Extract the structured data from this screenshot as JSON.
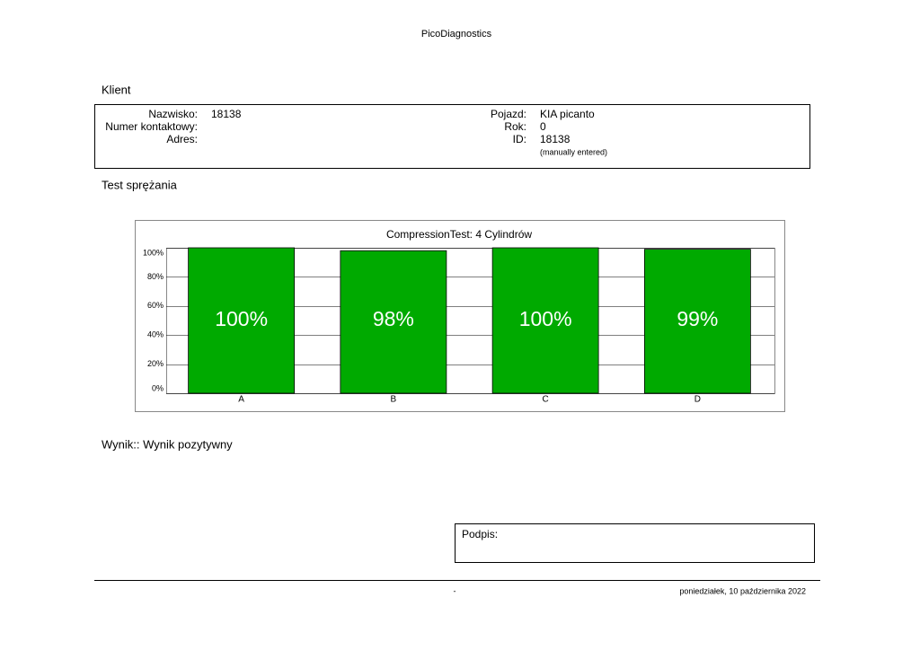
{
  "header": {
    "title": "PicoDiagnostics"
  },
  "client": {
    "heading": "Klient",
    "fields": [
      {
        "label": "Nazwisko:",
        "value": "18138"
      },
      {
        "label": "Numer kontaktowy:"
      },
      {
        "label": "Adres:"
      }
    ],
    "vehicle_fields": [
      {
        "label": "Pojazd:",
        "value": "KIA picanto"
      },
      {
        "label": "Rok:",
        "value": "0"
      },
      {
        "label": "ID:",
        "value": "18138",
        "note": "(manually entered)"
      }
    ]
  },
  "section": {
    "heading": "Test sprężania"
  },
  "chart_data": {
    "type": "bar",
    "title": "CompressionTest: 4 Cylindrów",
    "categories": [
      "A",
      "B",
      "C",
      "D"
    ],
    "values": [
      100,
      98,
      100,
      99
    ],
    "value_labels": [
      "100%",
      "98%",
      "100%",
      "99%"
    ],
    "color": "#00aa00",
    "ylim": [
      0,
      100
    ],
    "yticks": [
      {
        "value": 0,
        "label": "0%"
      },
      {
        "value": 20,
        "label": "20%"
      },
      {
        "value": 40,
        "label": "40%"
      },
      {
        "value": 60,
        "label": "60%"
      },
      {
        "value": 80,
        "label": "80%"
      },
      {
        "value": 100,
        "label": "100%"
      }
    ],
    "grid": true
  },
  "result": "Wynik:: Wynik pozytywny",
  "signature": "Podpis:",
  "footer": {
    "center": "-",
    "date": "poniedziałek, 10 października 2022"
  }
}
